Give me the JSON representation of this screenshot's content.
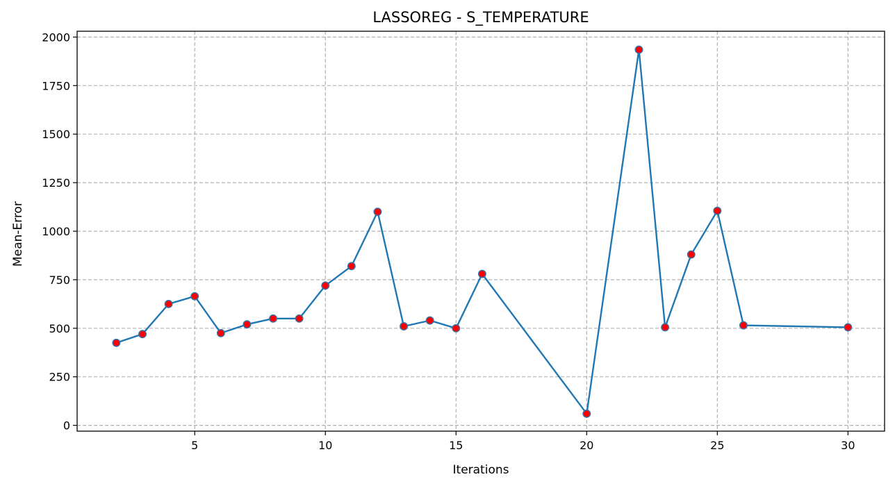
{
  "chart_data": {
    "type": "line",
    "title": "LASSOREG - S_TEMPERATURE",
    "xlabel": "Iterations",
    "ylabel": "Mean-Error",
    "xlim": [
      0.5,
      31.4
    ],
    "ylim": [
      -30,
      2030
    ],
    "xticks": [
      5,
      10,
      15,
      20,
      25,
      30
    ],
    "yticks": [
      0,
      250,
      500,
      750,
      1000,
      1250,
      1500,
      1750,
      2000
    ],
    "grid": true,
    "line_color": "#1f77b4",
    "marker_color": "#ff0000",
    "series": [
      {
        "x": [
          2,
          3,
          4,
          5,
          6,
          7,
          8,
          9,
          10,
          11,
          12,
          13,
          14,
          15,
          16,
          20,
          22,
          23,
          24,
          25,
          26,
          30
        ],
        "y": [
          425,
          470,
          625,
          665,
          475,
          520,
          550,
          550,
          720,
          820,
          1100,
          510,
          540,
          500,
          780,
          60,
          1935,
          505,
          880,
          1105,
          515,
          505
        ]
      }
    ]
  }
}
